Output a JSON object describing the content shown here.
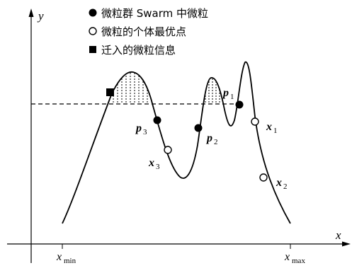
{
  "axes": {
    "y_label": "y",
    "x_label": "x",
    "x_min_base": "x",
    "x_min_sub": "min",
    "x_max_base": "x",
    "x_max_sub": "max"
  },
  "legend": [
    {
      "symbol": "filled-circle",
      "text": "微粒群 Swarm 中微粒"
    },
    {
      "symbol": "hollow-circle",
      "text": "微粒的个体最优点"
    },
    {
      "symbol": "filled-square",
      "text": "迁入的微粒信息"
    }
  ],
  "points": {
    "p1": {
      "base": "p",
      "sub": "1"
    },
    "p2": {
      "base": "p",
      "sub": "2"
    },
    "p3": {
      "base": "p",
      "sub": "3"
    },
    "x1": {
      "base": "x",
      "sub": "1"
    },
    "x2": {
      "base": "x",
      "sub": "2"
    },
    "x3": {
      "base": "x",
      "sub": "3"
    }
  }
}
